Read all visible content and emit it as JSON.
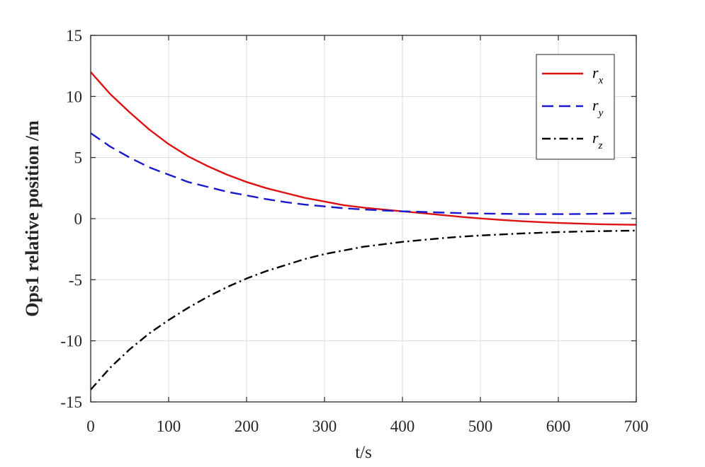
{
  "chart_data": {
    "type": "line",
    "xlabel": "t/s",
    "ylabel": "Ops1 relative position /m",
    "xlim": [
      0,
      700
    ],
    "ylim": [
      -15,
      15
    ],
    "xticks": [
      0,
      100,
      200,
      300,
      400,
      500,
      600,
      700
    ],
    "yticks": [
      -15,
      -10,
      -5,
      0,
      5,
      10,
      15
    ],
    "xtick_labels": [
      "0",
      "100",
      "200",
      "300",
      "400",
      "500",
      "600",
      "700"
    ],
    "ytick_labels": [
      "-15",
      "-10",
      "-5",
      "0",
      "5",
      "10",
      "15"
    ],
    "grid": true,
    "legend_position": "top-right",
    "x": [
      0,
      25,
      50,
      75,
      100,
      125,
      150,
      175,
      200,
      225,
      250,
      275,
      300,
      325,
      350,
      375,
      400,
      425,
      450,
      475,
      500,
      525,
      550,
      575,
      600,
      625,
      650,
      675,
      700
    ],
    "series": [
      {
        "name": "r_x",
        "legend_main": "r",
        "legend_sub": "x",
        "color": "#dd1111",
        "style": "solid",
        "values": [
          12.0,
          10.2,
          8.7,
          7.3,
          6.1,
          5.1,
          4.3,
          3.6,
          3.0,
          2.5,
          2.1,
          1.7,
          1.4,
          1.1,
          0.9,
          0.75,
          0.6,
          0.45,
          0.3,
          0.15,
          0.02,
          -0.1,
          -0.2,
          -0.28,
          -0.35,
          -0.4,
          -0.45,
          -0.48,
          -0.5
        ]
      },
      {
        "name": "r_y",
        "legend_main": "r",
        "legend_sub": "y",
        "color": "#1a1acc",
        "style": "dashed",
        "values": [
          7.0,
          5.9,
          5.0,
          4.2,
          3.6,
          3.0,
          2.6,
          2.2,
          1.9,
          1.6,
          1.35,
          1.15,
          1.0,
          0.85,
          0.75,
          0.67,
          0.6,
          0.55,
          0.5,
          0.45,
          0.42,
          0.4,
          0.38,
          0.37,
          0.37,
          0.38,
          0.4,
          0.43,
          0.46
        ]
      },
      {
        "name": "r_z",
        "legend_main": "r",
        "legend_sub": "z",
        "color": "#000000",
        "style": "dashdot",
        "values": [
          -14.0,
          -12.2,
          -10.7,
          -9.4,
          -8.3,
          -7.3,
          -6.4,
          -5.6,
          -4.9,
          -4.3,
          -3.8,
          -3.3,
          -2.9,
          -2.6,
          -2.3,
          -2.1,
          -1.9,
          -1.75,
          -1.6,
          -1.48,
          -1.38,
          -1.3,
          -1.22,
          -1.16,
          -1.1,
          -1.06,
          -1.03,
          -1.0,
          -0.98
        ]
      }
    ]
  }
}
